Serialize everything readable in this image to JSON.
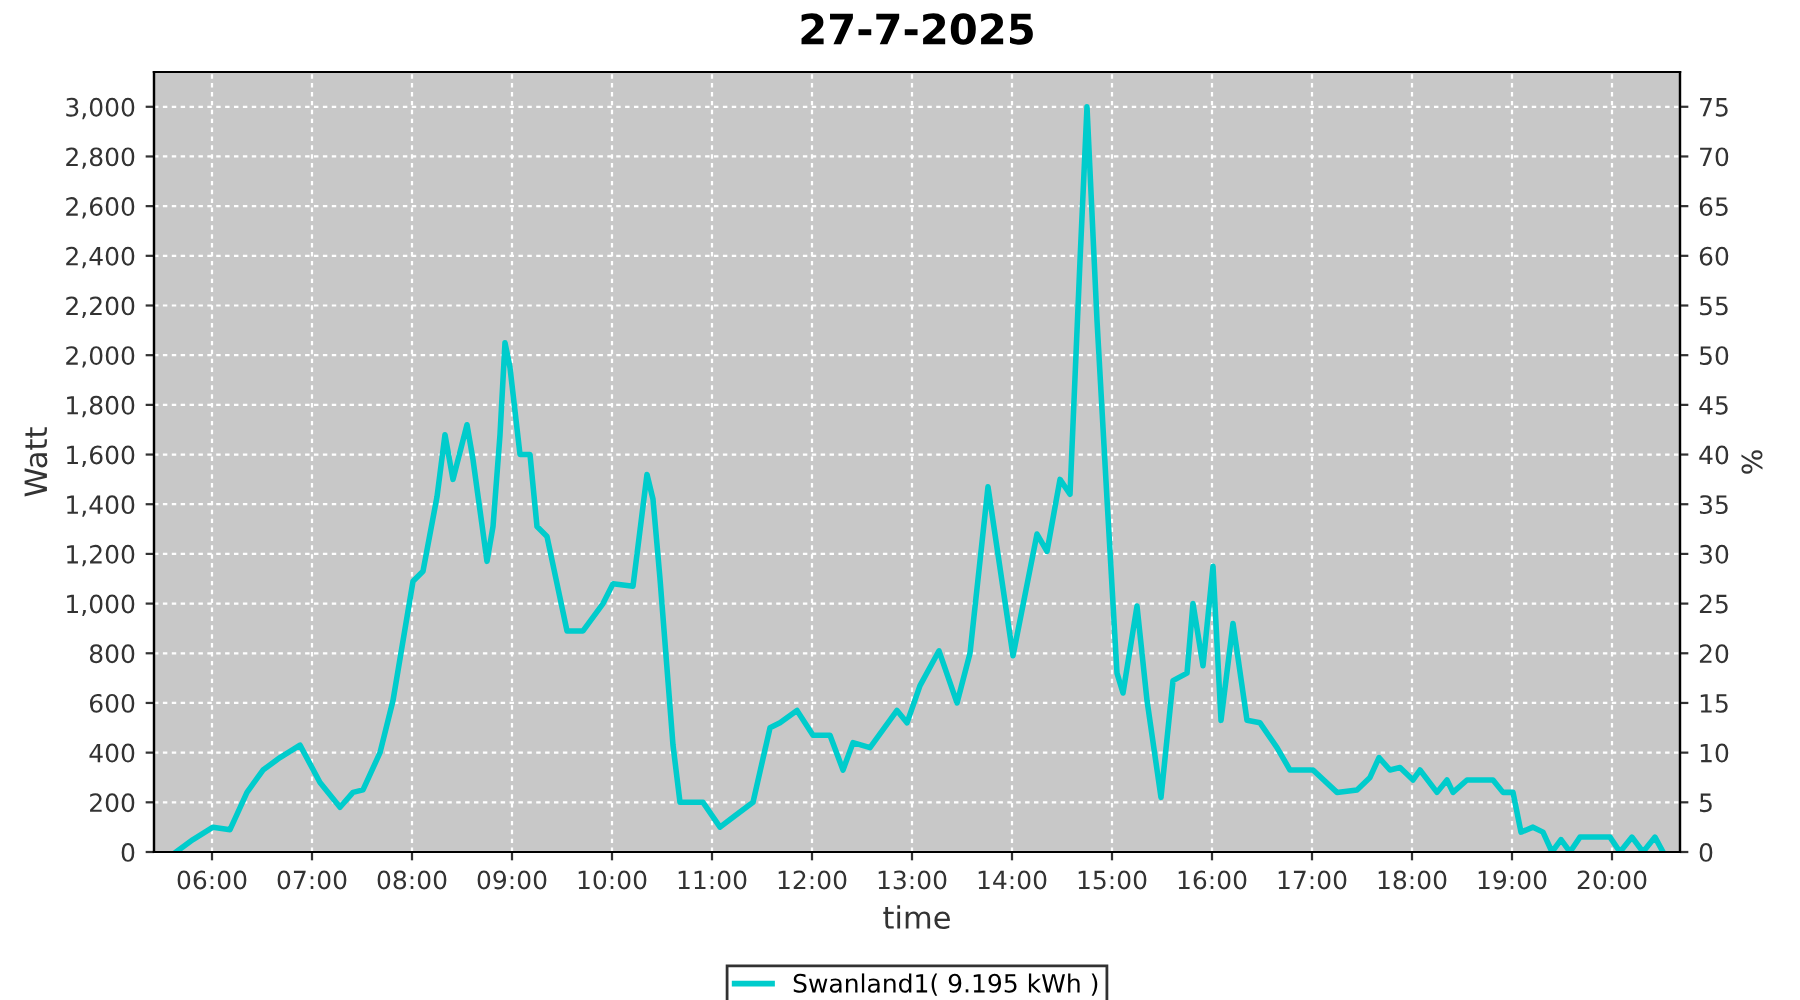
{
  "chart_data": {
    "type": "line",
    "title": "27-7-2025",
    "xlabel": "time",
    "ylabel": "Watt",
    "y2label": "%",
    "series": [
      {
        "name": "Swanland1( 9.195 kWh )",
        "color": "#00cccc",
        "x": [
          5.64,
          5.81,
          6.01,
          6.18,
          6.35,
          6.51,
          6.68,
          6.88,
          7.08,
          7.28,
          7.41,
          7.51,
          7.68,
          7.81,
          8.01,
          8.11,
          8.25,
          8.33,
          8.41,
          8.55,
          8.61,
          8.75,
          8.81,
          8.88,
          8.93,
          8.98,
          9.08,
          9.18,
          9.25,
          9.35,
          9.55,
          9.71,
          9.91,
          10.01,
          10.21,
          10.35,
          10.41,
          10.48,
          10.61,
          10.68,
          10.91,
          11.08,
          11.21,
          11.41,
          11.58,
          11.68,
          11.85,
          12.01,
          12.18,
          12.31,
          12.41,
          12.58,
          12.85,
          12.95,
          13.08,
          13.27,
          13.45,
          13.58,
          13.76,
          14.01,
          14.25,
          14.35,
          14.48,
          14.58,
          14.68,
          14.75,
          14.85,
          14.95,
          15.05,
          15.11,
          15.25,
          15.35,
          15.49,
          15.61,
          15.75,
          15.81,
          15.91,
          16.01,
          16.09,
          16.21,
          16.35,
          16.48,
          16.65,
          16.78,
          17.01,
          17.25,
          17.45,
          17.58,
          17.67,
          17.78,
          17.88,
          18.01,
          18.08,
          18.25,
          18.35,
          18.41,
          18.55,
          18.81,
          18.91,
          19.01,
          19.09,
          19.21,
          19.31,
          19.4,
          19.49,
          19.58,
          19.68,
          19.98,
          20.08,
          20.2,
          20.31,
          20.43,
          20.51
        ],
        "values": [
          0,
          50,
          100,
          90,
          240,
          330,
          380,
          430,
          280,
          180,
          240,
          250,
          400,
          610,
          1090,
          1130,
          1430,
          1680,
          1500,
          1720,
          1580,
          1170,
          1310,
          1680,
          2050,
          1950,
          1600,
          1600,
          1310,
          1270,
          890,
          890,
          1000,
          1080,
          1070,
          1520,
          1420,
          1100,
          430,
          200,
          200,
          100,
          140,
          200,
          500,
          520,
          570,
          470,
          470,
          330,
          440,
          420,
          570,
          520,
          670,
          810,
          600,
          800,
          1470,
          790,
          1280,
          1210,
          1500,
          1440,
          2380,
          3000,
          2140,
          1420,
          720,
          640,
          990,
          610,
          220,
          690,
          720,
          1000,
          750,
          1150,
          530,
          920,
          530,
          520,
          420,
          330,
          330,
          240,
          250,
          300,
          380,
          330,
          340,
          290,
          330,
          240,
          290,
          240,
          290,
          290,
          240,
          240,
          80,
          100,
          80,
          0,
          50,
          0,
          60,
          60,
          0,
          60,
          0,
          60,
          0
        ]
      }
    ],
    "xlim": [
      5.42,
      20.68
    ],
    "xticks": [
      {
        "value": 6,
        "label": "06:00"
      },
      {
        "value": 7,
        "label": "07:00"
      },
      {
        "value": 8,
        "label": "08:00"
      },
      {
        "value": 9,
        "label": "09:00"
      },
      {
        "value": 10,
        "label": "10:00"
      },
      {
        "value": 11,
        "label": "11:00"
      },
      {
        "value": 12,
        "label": "12:00"
      },
      {
        "value": 13,
        "label": "13:00"
      },
      {
        "value": 14,
        "label": "14:00"
      },
      {
        "value": 15,
        "label": "15:00"
      },
      {
        "value": 16,
        "label": "16:00"
      },
      {
        "value": 17,
        "label": "17:00"
      },
      {
        "value": 18,
        "label": "18:00"
      },
      {
        "value": 19,
        "label": "19:00"
      },
      {
        "value": 20,
        "label": "20:00"
      }
    ],
    "ylim": [
      0,
      3140
    ],
    "yticks": [
      0,
      200,
      400,
      600,
      800,
      {
        "value": 1000,
        "label": "1,000"
      },
      {
        "value": 1200,
        "label": "1,200"
      },
      {
        "value": 1400,
        "label": "1,400"
      },
      {
        "value": 1600,
        "label": "1,600"
      },
      {
        "value": 1800,
        "label": "1,800"
      },
      {
        "value": 2000,
        "label": "2,000"
      },
      {
        "value": 2200,
        "label": "2,200"
      },
      {
        "value": 2400,
        "label": "2,400"
      },
      {
        "value": 2600,
        "label": "2,600"
      },
      {
        "value": 2800,
        "label": "2,800"
      },
      {
        "value": 3000,
        "label": "3,000"
      }
    ],
    "y2lim": [
      0,
      78.5
    ],
    "y2ticks": [
      0,
      5,
      10,
      15,
      20,
      25,
      30,
      35,
      40,
      45,
      50,
      55,
      60,
      65,
      70,
      75
    ],
    "grid": true,
    "legend": "bottom",
    "line_style": "solid",
    "marker": "none"
  }
}
